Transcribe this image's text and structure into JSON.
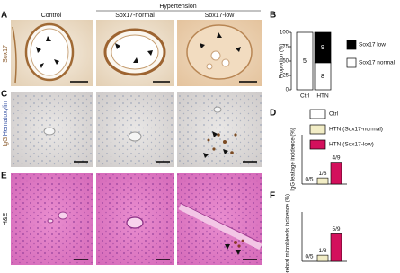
{
  "panel_labels": [
    "A",
    "B",
    "C",
    "D",
    "E",
    "F"
  ],
  "column_headers": {
    "group": "Hypertension",
    "columns": [
      "Control",
      "Sox17-normal",
      "Sox17-low"
    ]
  },
  "row_labels": {
    "sox17": "Sox17",
    "igg": "IgG",
    "hematoxylin": "Hematoxylin",
    "he": "H&E"
  },
  "chart_data": [
    {
      "type": "stacked-bar",
      "y_label": "Proportion (%)",
      "categories": [
        "Ctrl",
        "HTN"
      ],
      "series": [
        {
          "name": "Sox17 low",
          "color": "#000000",
          "values": [
            0,
            52.9
          ],
          "counts": [
            null,
            9
          ]
        },
        {
          "name": "Sox17 normal",
          "color": "#ffffff",
          "values": [
            100,
            47.1
          ],
          "counts": [
            5,
            8
          ]
        }
      ],
      "ylim": [
        0,
        100
      ],
      "yticks": [
        0,
        25,
        50,
        75,
        100
      ]
    },
    {
      "type": "bar",
      "y_label": "IgG leakage incidence (%)",
      "series": [
        {
          "name": "Ctrl",
          "color": "#ffffff",
          "values": [
            0
          ],
          "value_labels": [
            "0/5"
          ]
        },
        {
          "name": "HTN (Sox17-normal)",
          "color": "#f2edc6",
          "values": [
            12.5
          ],
          "value_labels": [
            "1/8"
          ]
        },
        {
          "name": "HTN (Sox17-low)",
          "color": "#d3105c",
          "values": [
            44.4
          ],
          "value_labels": [
            "4/9"
          ]
        }
      ],
      "ylim": [
        0,
        100
      ]
    },
    {
      "type": "bar",
      "y_label": "Cerebral microbleeds incidence (%)",
      "series": [
        {
          "color": "#ffffff",
          "values": [
            0
          ],
          "value_labels": [
            "0/5"
          ]
        },
        {
          "color": "#f2edc6",
          "values": [
            12.5
          ],
          "value_labels": [
            "1/8"
          ]
        },
        {
          "color": "#d3105c",
          "values": [
            55.6
          ],
          "value_labels": [
            "5/9"
          ]
        }
      ],
      "ylim": [
        0,
        100
      ]
    }
  ]
}
